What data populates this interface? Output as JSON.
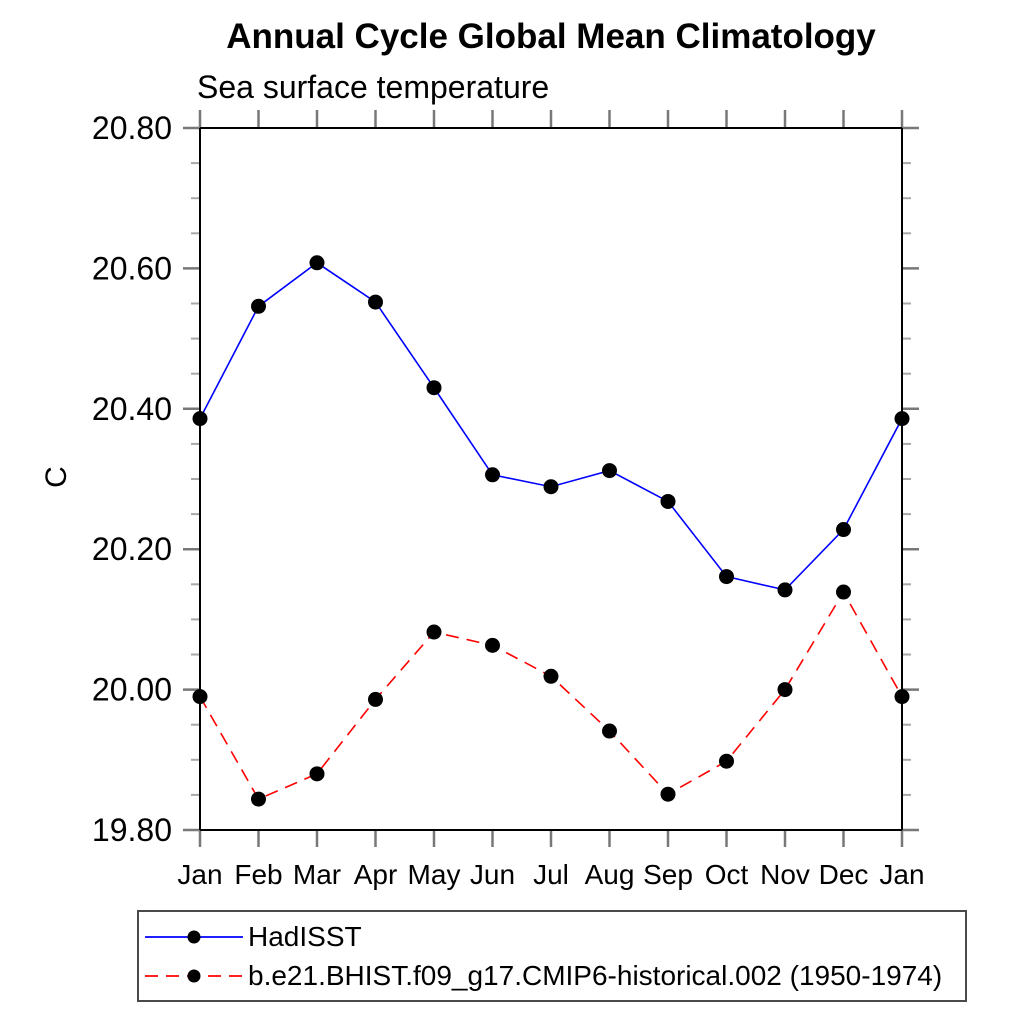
{
  "chart_data": {
    "type": "line",
    "title": "Annual Cycle Global Mean Climatology",
    "subtitle": "Sea surface temperature",
    "ylabel": "C",
    "xlabel": "",
    "categories": [
      "Jan",
      "Feb",
      "Mar",
      "Apr",
      "May",
      "Jun",
      "Jul",
      "Aug",
      "Sep",
      "Oct",
      "Nov",
      "Dec",
      "Jan"
    ],
    "ylim": [
      19.8,
      20.8
    ],
    "yticks": {
      "values": [
        19.8,
        20.0,
        20.2,
        20.4,
        20.6,
        20.8
      ],
      "labels": [
        "19.80",
        "20.00",
        "20.20",
        "20.40",
        "20.60",
        "20.80"
      ],
      "minor_step": 0.05
    },
    "grid": false,
    "legend_position": "bottom-left",
    "axis_color": "#000000",
    "tick_color_major": "#787878",
    "tick_color_minor": "#a8a8a8",
    "series": [
      {
        "name": "HadISST",
        "color": "#0000ff",
        "line_style": "solid",
        "marker": "filled-circle",
        "marker_color": "#000000",
        "values": [
          20.386,
          20.546,
          20.608,
          20.552,
          20.43,
          20.306,
          20.289,
          20.312,
          20.268,
          20.161,
          20.142,
          20.228,
          20.386
        ]
      },
      {
        "name": "b.e21.BHIST.f09_g17.CMIP6-historical.002 (1950-1974)",
        "color": "#ff0000",
        "line_style": "dashed",
        "marker": "filled-circle",
        "marker_color": "#000000",
        "values": [
          19.99,
          19.844,
          19.88,
          19.986,
          20.082,
          20.063,
          20.019,
          19.941,
          19.851,
          19.898,
          20.0,
          20.139,
          19.99
        ]
      }
    ]
  }
}
